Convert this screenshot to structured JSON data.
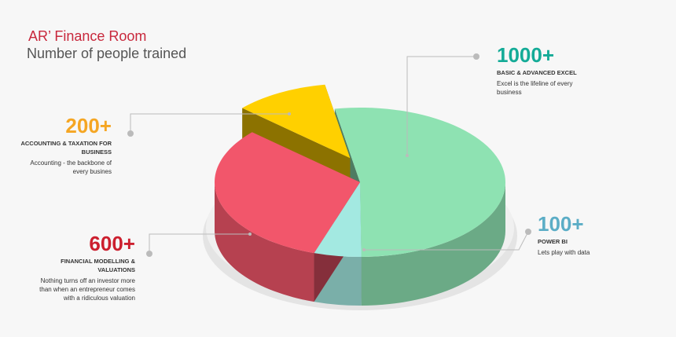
{
  "chart_data": {
    "type": "pie",
    "title": "AR’ Finance  Room",
    "subtitle": "Number of people trained",
    "categories": [
      "BASIC & ADVANCED EXCEL",
      "POWER BI",
      "FINANCIAL MODELLING & VALUATIONS",
      "ACCOUNTING & TAXATION FOR BUSINESS"
    ],
    "values": [
      1000,
      100,
      600,
      200
    ],
    "value_labels": [
      "1000+",
      "100+",
      "600+",
      "200+"
    ],
    "descriptions": [
      "Excel is the lifeline of every business",
      "Lets play with data",
      "Nothing turns off an investor more than when an entrepreneur comes with a ridiculous valuation",
      "Accounting - the backbone of every busines"
    ],
    "colors": [
      "#8ee2b2",
      "#a3e9e1",
      "#f2566b",
      "#ffd000"
    ],
    "label_colors": [
      "#14ab97",
      "#5badc6",
      "#cc1f2e",
      "#f5a623"
    ]
  }
}
